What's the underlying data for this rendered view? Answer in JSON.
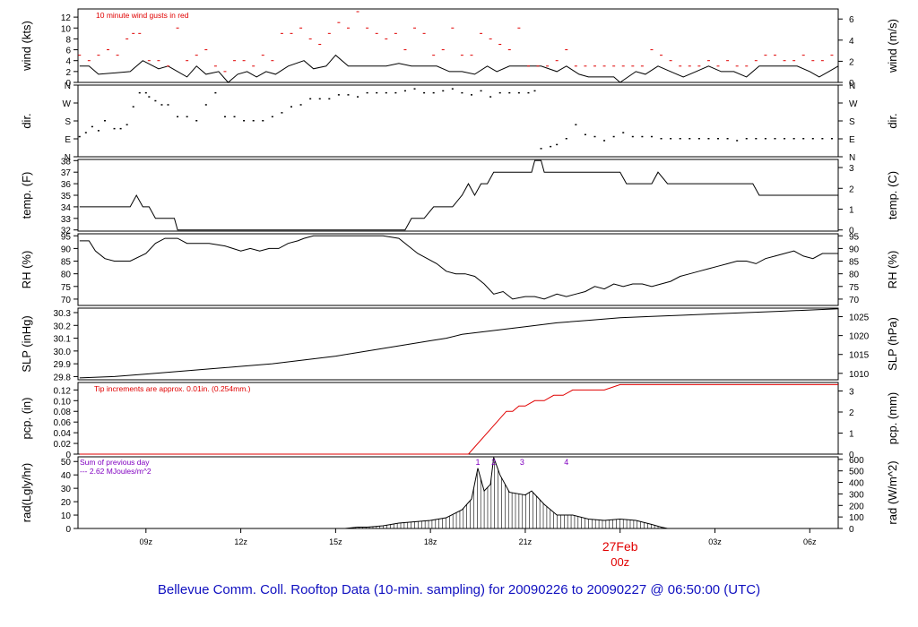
{
  "title": "Bellevue Comm. Coll. Rooftop Data (10-min. sampling) for 20090226  to  20090227 @ 06:50:00  (UTC)",
  "colors": {
    "axis": "#000000",
    "rain": "#e00000",
    "gust": "#e00000",
    "note": "#8000c0",
    "title": "#1010c0",
    "date": "#e00000"
  },
  "x_axis": {
    "unit": "UTC hour since 06z 2009-02-26",
    "range": [
      6.85,
      30.9
    ],
    "ticks": [
      {
        "x": 9,
        "label": "09z"
      },
      {
        "x": 12,
        "label": "12z"
      },
      {
        "x": 15,
        "label": "15z"
      },
      {
        "x": 18,
        "label": "18z"
      },
      {
        "x": 21,
        "label": "21z"
      },
      {
        "x": 24,
        "label": ""
      },
      {
        "x": 27,
        "label": "03z"
      },
      {
        "x": 30,
        "label": "06z"
      }
    ],
    "date_marker": {
      "x": 24,
      "date": "27Feb",
      "hour": "00z"
    }
  },
  "chart_data": [
    {
      "id": "wind",
      "type": "line",
      "ylabel": "wind (kts)",
      "ylabel_right": "wind (m/s)",
      "ylim": [
        0,
        13.5
      ],
      "yticks": [
        0,
        2,
        4,
        6,
        8,
        10,
        12
      ],
      "right_ylim": [
        0,
        6.95
      ],
      "right_yticks": [
        0,
        2,
        4,
        6
      ],
      "annotation": "10  minute wind gusts in red",
      "series": [
        {
          "role": "speed",
          "style": "line",
          "x": [
            6.9,
            7.2,
            7.5,
            8.5,
            8.9,
            9.4,
            9.7,
            10.3,
            10.6,
            10.9,
            11.3,
            11.6,
            11.9,
            12.2,
            12.5,
            12.8,
            13.1,
            13.5,
            14.0,
            14.3,
            14.7,
            15.0,
            15.4,
            15.8,
            16.2,
            16.6,
            17.0,
            17.4,
            17.8,
            18.2,
            18.6,
            19.0,
            19.4,
            19.8,
            20.1,
            20.5,
            21.0,
            21.5,
            22.0,
            22.3,
            22.7,
            23.0,
            23.4,
            23.8,
            24.0,
            24.5,
            24.8,
            25.2,
            25.6,
            26.0,
            26.4,
            26.8,
            27.2,
            27.6,
            28.0,
            28.4,
            28.8,
            29.2,
            29.6,
            30.0,
            30.3,
            30.6,
            30.9
          ],
          "y": [
            3,
            3,
            1.5,
            2,
            4,
            2.5,
            3,
            1,
            3,
            1.5,
            2,
            0,
            1.5,
            2,
            1,
            2,
            1.5,
            3,
            4,
            2.5,
            3,
            5,
            3,
            3,
            3,
            3,
            3.5,
            3,
            3,
            3,
            2,
            2,
            1.5,
            3,
            2,
            3,
            3,
            3,
            2,
            3,
            1.5,
            1,
            1,
            1,
            0,
            2,
            1.5,
            3,
            2,
            1,
            2,
            3,
            2,
            2,
            1,
            3,
            3,
            3,
            3,
            2,
            1,
            2,
            3
          ]
        },
        {
          "role": "gust",
          "style": "dash",
          "x": [
            6.9,
            7.2,
            7.5,
            7.8,
            8.1,
            8.4,
            8.6,
            8.8,
            9.1,
            9.4,
            9.7,
            10.0,
            10.3,
            10.6,
            10.9,
            11.2,
            11.5,
            11.8,
            12.1,
            12.4,
            12.7,
            13.0,
            13.3,
            13.6,
            13.9,
            14.2,
            14.5,
            14.8,
            15.1,
            15.4,
            15.7,
            16.0,
            16.3,
            16.6,
            16.9,
            17.2,
            17.5,
            17.8,
            18.1,
            18.4,
            18.7,
            19.0,
            19.3,
            19.6,
            19.9,
            20.2,
            20.5,
            20.8,
            21.1,
            21.4,
            21.7,
            22.0,
            22.3,
            22.6,
            22.9,
            23.2,
            23.5,
            23.8,
            24.1,
            24.4,
            24.7,
            25.0,
            25.3,
            25.6,
            25.9,
            26.2,
            26.5,
            26.8,
            27.1,
            27.4,
            27.7,
            28.0,
            28.3,
            28.6,
            28.9,
            29.2,
            29.5,
            29.8,
            30.1,
            30.4,
            30.7
          ],
          "y": [
            5,
            4,
            5,
            6,
            5,
            8,
            9,
            9,
            4,
            4,
            3,
            10,
            4,
            5,
            6,
            3,
            2,
            4,
            4,
            3,
            5,
            4,
            9,
            9,
            10,
            8,
            7,
            9,
            11,
            10,
            13,
            10,
            9,
            8,
            9,
            6,
            10,
            9,
            5,
            6,
            10,
            5,
            5,
            9,
            8,
            7,
            6,
            10,
            3,
            3,
            3,
            4,
            6,
            3,
            3,
            3,
            3,
            3,
            3,
            3,
            3,
            6,
            5,
            4,
            3,
            3,
            3,
            4,
            3,
            4,
            3,
            3,
            4,
            5,
            5,
            4,
            4,
            5,
            4,
            4,
            5
          ]
        }
      ]
    },
    {
      "id": "dir",
      "type": "scatter",
      "ylabel": "dir.",
      "ylabel_right": "dir.",
      "ylim": [
        0,
        360
      ],
      "ytick_labels": [
        "N",
        "E",
        "S",
        "W",
        "N"
      ],
      "ytick_values": [
        0,
        90,
        180,
        270,
        360
      ],
      "series": [
        {
          "x": [
            6.9,
            7.1,
            7.3,
            7.5,
            7.7,
            8.0,
            8.2,
            8.4,
            8.6,
            8.8,
            9.0,
            9.1,
            9.3,
            9.5,
            9.7,
            10.0,
            10.3,
            10.6,
            10.9,
            11.2,
            11.5,
            11.8,
            12.1,
            12.4,
            12.7,
            13.0,
            13.3,
            13.6,
            13.9,
            14.2,
            14.5,
            14.8,
            15.1,
            15.4,
            15.7,
            16.0,
            16.3,
            16.6,
            16.9,
            17.2,
            17.5,
            17.8,
            18.1,
            18.4,
            18.7,
            19.0,
            19.3,
            19.6,
            19.9,
            20.2,
            20.5,
            20.8,
            21.1,
            21.3,
            21.5,
            21.8,
            22.0,
            22.3,
            22.6,
            22.9,
            23.2,
            23.5,
            23.8,
            24.1,
            24.4,
            24.7,
            25.0,
            25.3,
            25.6,
            25.9,
            26.2,
            26.5,
            26.8,
            27.1,
            27.4,
            27.7,
            28.0,
            28.3,
            28.6,
            28.9,
            29.2,
            29.5,
            29.8,
            30.1,
            30.4,
            30.7
          ],
          "y": [
            100,
            120,
            150,
            130,
            180,
            140,
            140,
            160,
            250,
            320,
            320,
            300,
            280,
            260,
            260,
            200,
            200,
            180,
            260,
            320,
            200,
            200,
            180,
            180,
            180,
            200,
            220,
            250,
            260,
            290,
            290,
            290,
            310,
            310,
            300,
            320,
            320,
            320,
            320,
            330,
            340,
            320,
            320,
            330,
            340,
            320,
            310,
            330,
            300,
            320,
            320,
            320,
            320,
            330,
            40,
            50,
            60,
            90,
            160,
            110,
            100,
            80,
            100,
            120,
            100,
            100,
            100,
            90,
            90,
            90,
            90,
            90,
            90,
            90,
            90,
            80,
            90,
            90,
            90,
            90,
            90,
            90,
            90,
            90,
            90,
            90
          ]
        }
      ]
    },
    {
      "id": "temp",
      "type": "line",
      "ylabel": "temp. (F)",
      "ylabel_right": "temp. (C)",
      "ylim": [
        31.9,
        38.1
      ],
      "yticks": [
        32,
        33,
        34,
        35,
        36,
        37,
        38
      ],
      "right_yticks": [
        0,
        1,
        2,
        3
      ],
      "series": [
        {
          "x": [
            6.9,
            8.5,
            8.7,
            8.9,
            9.1,
            9.3,
            9.5,
            9.9,
            10.0,
            11.0,
            12.0,
            13.0,
            14.0,
            15.0,
            16.0,
            17.0,
            17.2,
            17.4,
            17.8,
            18.1,
            18.5,
            18.7,
            19.0,
            19.2,
            19.4,
            19.6,
            19.8,
            20.0,
            20.3,
            20.5,
            20.7,
            21.0,
            21.2,
            21.3,
            21.5,
            21.6,
            21.8,
            22.0,
            22.5,
            23.0,
            23.5,
            24.0,
            24.2,
            24.5,
            24.8,
            25.0,
            25.2,
            25.5,
            25.6,
            25.8,
            26.0,
            26.5,
            27.0,
            27.5,
            28.0,
            28.2,
            28.4,
            28.8,
            29.0,
            29.5,
            30.0,
            30.9
          ],
          "y": [
            34,
            34,
            35,
            34,
            34,
            33,
            33,
            33,
            32,
            32,
            32,
            32,
            32,
            32,
            32,
            32,
            32,
            33,
            33,
            34,
            34,
            34,
            35,
            36,
            35,
            36,
            36,
            37,
            37,
            37,
            37,
            37,
            37,
            38,
            38,
            37,
            37,
            37,
            37,
            37,
            37,
            37,
            36,
            36,
            36,
            36,
            37,
            36,
            36,
            36,
            36,
            36,
            36,
            36,
            36,
            36,
            35,
            35,
            35,
            35,
            35,
            35
          ]
        }
      ]
    },
    {
      "id": "rh",
      "type": "line",
      "ylabel": "RH (%)",
      "ylabel_right": "RH (%)",
      "ylim": [
        67.5,
        95.8
      ],
      "yticks": [
        70,
        75,
        80,
        85,
        90,
        95
      ],
      "series": [
        {
          "x": [
            6.9,
            7.2,
            7.4,
            7.7,
            8.0,
            8.5,
            9.0,
            9.3,
            9.6,
            10.0,
            10.3,
            10.6,
            11.0,
            11.5,
            12.0,
            12.3,
            12.6,
            12.9,
            13.2,
            13.5,
            13.8,
            14.0,
            14.3,
            14.6,
            15.0,
            15.5,
            16.0,
            16.5,
            17.0,
            17.3,
            17.6,
            17.9,
            18.2,
            18.5,
            18.8,
            19.1,
            19.4,
            19.7,
            20.0,
            20.3,
            20.6,
            21.0,
            21.3,
            21.6,
            22.0,
            22.3,
            22.6,
            22.9,
            23.2,
            23.5,
            23.8,
            24.1,
            24.4,
            24.7,
            25.0,
            25.3,
            25.6,
            25.9,
            26.2,
            26.5,
            26.8,
            27.1,
            27.4,
            27.7,
            28.0,
            28.3,
            28.6,
            28.9,
            29.2,
            29.5,
            29.8,
            30.1,
            30.4,
            30.9
          ],
          "y": [
            93,
            93,
            89,
            86,
            85,
            85,
            88,
            92,
            94,
            94,
            92,
            92,
            92,
            91,
            89,
            90,
            89,
            90,
            90,
            92,
            93,
            94,
            95,
            95,
            95,
            95,
            95,
            95,
            94,
            91,
            88,
            86,
            84,
            81,
            80,
            80,
            79,
            76,
            72,
            73,
            70,
            71,
            71,
            70,
            72,
            71,
            72,
            73,
            75,
            74,
            76,
            75,
            76,
            76,
            75,
            76,
            77,
            79,
            80,
            81,
            82,
            83,
            84,
            85,
            85,
            84,
            86,
            87,
            88,
            89,
            87,
            86,
            88,
            88
          ]
        }
      ]
    },
    {
      "id": "slp",
      "type": "line",
      "ylabel": "SLP (inHg)",
      "ylabel_right": "SLP (hPa)",
      "ylim": [
        29.775,
        30.335
      ],
      "yticks": [
        29.8,
        29.9,
        30.0,
        30.1,
        30.2,
        30.3
      ],
      "right_yticks": [
        1010,
        1015,
        1020,
        1025
      ],
      "series": [
        {
          "x": [
            6.9,
            8.0,
            9.0,
            10.0,
            11.0,
            12.0,
            13.0,
            14.0,
            15.0,
            16.0,
            17.0,
            18.0,
            18.5,
            19.0,
            20.0,
            21.0,
            22.0,
            23.0,
            24.0,
            25.0,
            26.0,
            27.0,
            28.0,
            29.0,
            30.0,
            30.9
          ],
          "y": [
            29.79,
            29.8,
            29.82,
            29.84,
            29.86,
            29.88,
            29.9,
            29.93,
            29.96,
            30.0,
            30.04,
            30.08,
            30.1,
            30.13,
            30.16,
            30.19,
            30.22,
            30.24,
            30.26,
            30.27,
            30.28,
            30.29,
            30.3,
            30.31,
            30.32,
            30.33
          ]
        }
      ]
    },
    {
      "id": "pcp",
      "type": "line",
      "ylabel": "pcp. (in)",
      "ylabel_right": "pcp. (mm)",
      "ylim": [
        0,
        0.134
      ],
      "yticks": [
        0,
        0.02,
        0.04,
        0.06,
        0.08,
        0.1,
        0.12
      ],
      "right_yticks": [
        0,
        1,
        2,
        3
      ],
      "annotation": "Tip increments are approx. 0.01in. (0.254mm.)",
      "series": [
        {
          "x": [
            6.9,
            19.2,
            20.4,
            20.6,
            20.8,
            21.0,
            21.3,
            21.6,
            21.9,
            22.2,
            22.5,
            23.0,
            23.5,
            24.0,
            24.2,
            25.0,
            26.0,
            28.0,
            30.9
          ],
          "y": [
            0,
            0,
            0.08,
            0.08,
            0.09,
            0.09,
            0.1,
            0.1,
            0.11,
            0.11,
            0.12,
            0.12,
            0.12,
            0.13,
            0.13,
            0.13,
            0.13,
            0.13,
            0.13
          ]
        }
      ]
    },
    {
      "id": "rad",
      "type": "area",
      "ylabel": "rad(Lgly/hr)",
      "ylabel_right": "rad (W/m^2)",
      "ylim": [
        0,
        53.5
      ],
      "yticks": [
        0,
        10,
        20,
        30,
        40,
        50
      ],
      "right_yticks": [
        0,
        100,
        200,
        300,
        400,
        500,
        600
      ],
      "notes": [
        "Sum of previous day",
        "--- 2.62 MJoules/m^2"
      ],
      "peak_labels": [
        {
          "x": 19.5,
          "label": "1"
        },
        {
          "x": 20.0,
          "label": "2"
        },
        {
          "x": 20.9,
          "label": "3"
        },
        {
          "x": 22.3,
          "label": "4"
        }
      ],
      "series": [
        {
          "x": [
            15.3,
            15.7,
            16.0,
            16.5,
            17.0,
            17.5,
            18.0,
            18.5,
            19.0,
            19.3,
            19.5,
            19.7,
            19.9,
            20.0,
            20.2,
            20.5,
            21.0,
            21.2,
            21.6,
            22.0,
            22.5,
            23.0,
            23.5,
            24.0,
            24.5,
            25.0,
            25.3,
            25.5
          ],
          "y": [
            0,
            1,
            1,
            2,
            4,
            5,
            6,
            8,
            14,
            22,
            45,
            28,
            33,
            53,
            40,
            27,
            25,
            28,
            18,
            10,
            10,
            7,
            6,
            7,
            6,
            3,
            1,
            0
          ]
        }
      ]
    }
  ]
}
